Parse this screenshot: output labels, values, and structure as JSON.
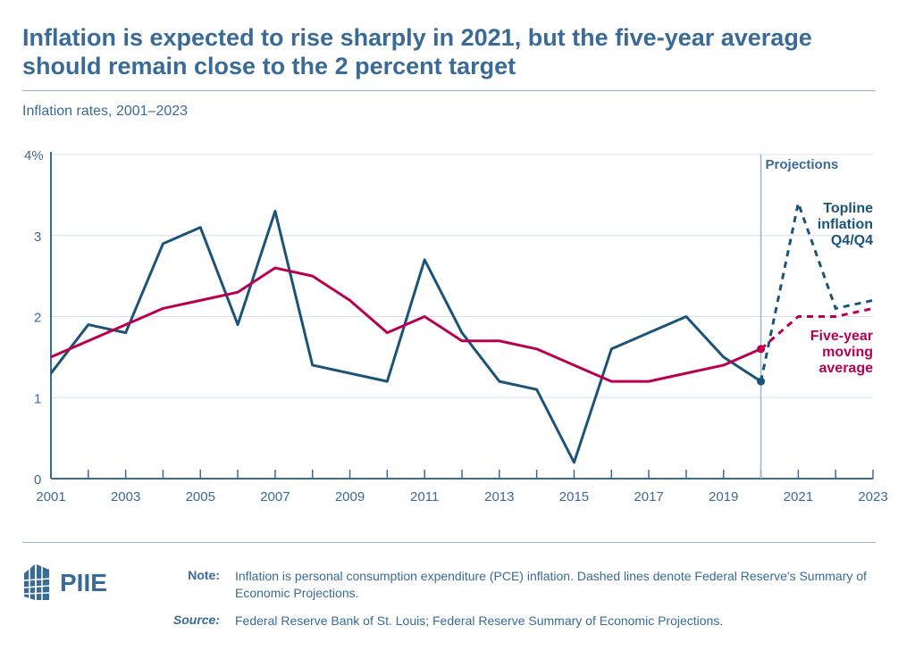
{
  "title": "Inflation is expected to rise sharply in 2021, but the five-year average should remain close to the 2 percent target",
  "subtitle": "Inflation rates, 2001–2023",
  "chart_data": {
    "type": "line",
    "x": [
      2001,
      2002,
      2003,
      2004,
      2005,
      2006,
      2007,
      2008,
      2009,
      2010,
      2011,
      2012,
      2013,
      2014,
      2015,
      2016,
      2017,
      2018,
      2019,
      2020,
      2021,
      2022,
      2023
    ],
    "series": [
      {
        "name": "Topline inflation Q4/Q4",
        "color": "#1b5478",
        "values": [
          1.3,
          1.9,
          1.8,
          2.9,
          3.1,
          1.9,
          3.3,
          1.4,
          1.3,
          1.2,
          2.7,
          1.8,
          1.2,
          1.1,
          0.2,
          1.6,
          1.8,
          2.0,
          1.5,
          1.2,
          3.4,
          2.1,
          2.2
        ]
      },
      {
        "name": "Five-year moving average",
        "color": "#b8004f",
        "values": [
          1.5,
          1.7,
          1.9,
          2.1,
          2.2,
          2.3,
          2.6,
          2.5,
          2.2,
          1.8,
          2.0,
          1.7,
          1.7,
          1.6,
          1.4,
          1.2,
          1.2,
          1.3,
          1.4,
          1.6,
          2.0,
          2.0,
          2.1
        ]
      }
    ],
    "projection_start": 2020,
    "projection_label": "Projections",
    "ylim": [
      0,
      4
    ],
    "yticks": [
      0,
      1,
      2,
      3,
      4
    ],
    "ytick_labels": [
      "0",
      "1",
      "2",
      "3",
      "4%"
    ],
    "xticks_labeled": [
      2001,
      2003,
      2005,
      2007,
      2009,
      2011,
      2013,
      2015,
      2017,
      2019,
      2021,
      2023
    ],
    "grid": true,
    "legend": "direct labels at right"
  },
  "labels": {
    "topline": [
      "Topline",
      "inflation",
      "Q4/Q4"
    ],
    "average": [
      "Five-year",
      "moving",
      "average"
    ]
  },
  "footer": {
    "note_label": "Note:",
    "note": "Inflation is personal consumption expenditure (PCE) inflation. Dashed lines denote Federal Reserve's Summary of Economic Projections.",
    "source_label": "Source:",
    "source": "Federal Reserve Bank of St. Louis; Federal Reserve Summary of Economic Projections.",
    "logo": "PIIE"
  }
}
